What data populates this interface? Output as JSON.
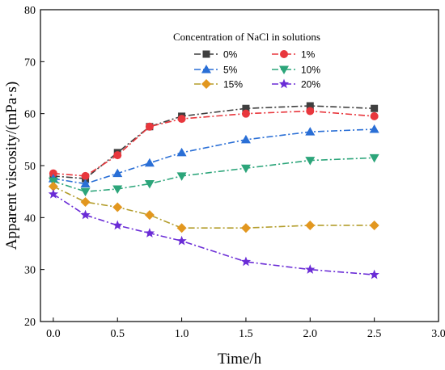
{
  "chart_data": {
    "type": "line",
    "xlabel": "Time/h",
    "ylabel": "Apparent viscosity/(mPa·s)",
    "xlim": [
      -0.1,
      3.0
    ],
    "ylim": [
      20,
      80
    ],
    "x_ticks": [
      "0.0",
      "0.5",
      "1.0",
      "1.5",
      "2.0",
      "2.5",
      "3.0"
    ],
    "y_ticks": [
      "20",
      "30",
      "40",
      "50",
      "60",
      "70",
      "80"
    ],
    "grid": false,
    "legend_title": "Concentration of NaCl in solutions",
    "legend_position": "top-right",
    "x": [
      0,
      0.25,
      0.5,
      0.75,
      1.0,
      1.5,
      2.0,
      2.5
    ],
    "series": [
      {
        "name": "0%",
        "color": "#3f3f3f",
        "marker": "square",
        "values": [
          48,
          47.5,
          52.5,
          57.5,
          59.5,
          61,
          61.5,
          61
        ]
      },
      {
        "name": "1%",
        "color": "#e8373d",
        "marker": "circle",
        "values": [
          48.5,
          48,
          52,
          57.5,
          59,
          60,
          60.5,
          59.5
        ]
      },
      {
        "name": "5%",
        "color": "#2a6fd6",
        "marker": "triangle-up",
        "values": [
          47.5,
          46.5,
          48.5,
          50.5,
          52.5,
          55,
          56.5,
          57
        ]
      },
      {
        "name": "10%",
        "color": "#2ca57a",
        "marker": "triangle-down",
        "values": [
          47,
          45,
          45.5,
          46.5,
          48,
          49.5,
          51,
          51.5
        ]
      },
      {
        "name": "15%",
        "color": "#e2971f",
        "marker": "diamond",
        "line_color": "#b39d2c",
        "values": [
          46,
          43,
          42,
          40.5,
          38,
          38,
          38.5,
          38.5
        ]
      },
      {
        "name": "20%",
        "color": "#6a2cd6",
        "marker": "star",
        "values": [
          44.5,
          40.5,
          38.5,
          37,
          35.5,
          31.5,
          30,
          29
        ]
      }
    ]
  }
}
